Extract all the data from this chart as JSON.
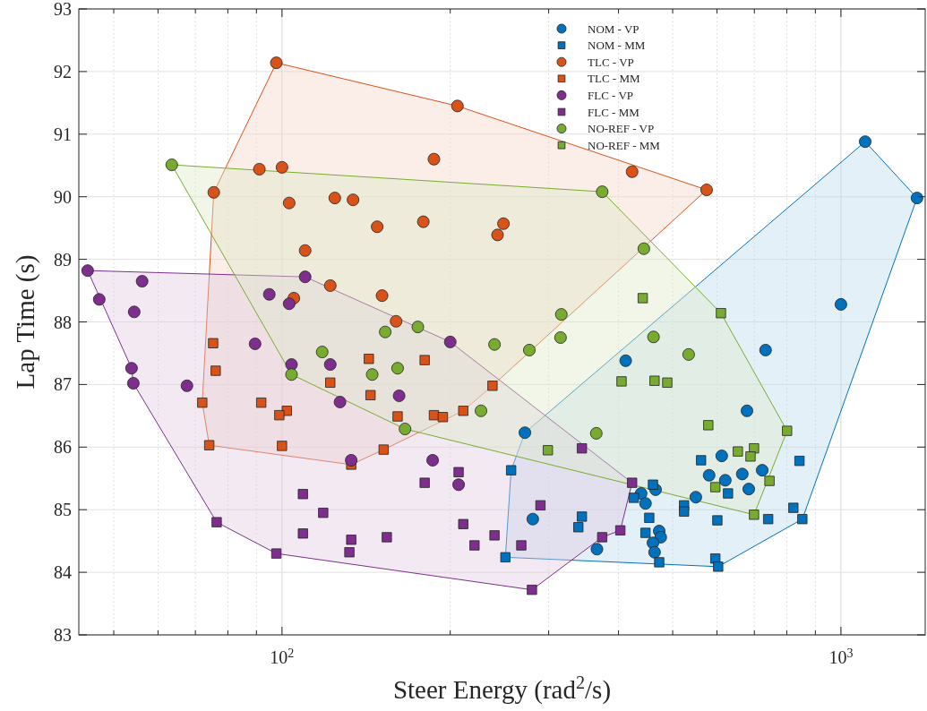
{
  "chart_data": {
    "type": "scatter",
    "xlabel": "Steer Energy (rad$^{2}$/s)",
    "ylabel": "Lap Time (s)",
    "log": "x",
    "grid": true,
    "legend": "top right",
    "xlim": [
      43.3,
      1415
    ],
    "ylim": [
      83,
      93
    ],
    "xticks": [
      {
        "value": 50,
        "label": null
      },
      {
        "value": 60,
        "label": null
      },
      {
        "value": 70,
        "label": null
      },
      {
        "value": 80,
        "label": null
      },
      {
        "value": 90,
        "label": null
      },
      {
        "value": 100,
        "label": "10$^{2}$"
      },
      {
        "value": 200,
        "label": null
      },
      {
        "value": 300,
        "label": null
      },
      {
        "value": 400,
        "label": null
      },
      {
        "value": 500,
        "label": null
      },
      {
        "value": 600,
        "label": null
      },
      {
        "value": 700,
        "label": null
      },
      {
        "value": 800,
        "label": null
      },
      {
        "value": 900,
        "label": null
      },
      {
        "value": 1000,
        "label": "10$^{3}$"
      }
    ],
    "yticks": [
      83,
      84,
      85,
      86,
      87,
      88,
      89,
      90,
      91,
      92,
      93
    ],
    "series": [
      {
        "type": "area",
        "color": "#0072bd",
        "x": [
          1105,
          1368,
          853,
          603,
          251,
          257,
          272
        ],
        "values": [
          90.88,
          89.98,
          84.85,
          84.09,
          84.24,
          85.63,
          86.23
        ]
      },
      {
        "type": "area",
        "color": "#d95319",
        "x": [
          97.7,
          206,
          575,
          238,
          211,
          152,
          133,
          74.1,
          72.0,
          75.5
        ],
        "values": [
          92.14,
          91.45,
          90.11,
          86.98,
          86.58,
          85.96,
          85.72,
          86.03,
          86.71,
          90.07
        ]
      },
      {
        "type": "area",
        "color": "#7e2f8e",
        "x": [
          44.9,
          110,
          200,
          423,
          403,
          374,
          280,
          97.7,
          76.4,
          54.2,
          53.8
        ],
        "values": [
          88.82,
          88.72,
          87.68,
          85.43,
          84.67,
          84.56,
          83.72,
          84.3,
          84.8,
          87.02,
          87.26
        ]
      },
      {
        "type": "area",
        "color": "#77ac30",
        "x": [
          63.5,
          374,
          610,
          801,
          699,
          166,
          104
        ],
        "values": [
          90.51,
          90.08,
          88.14,
          86.26,
          84.92,
          86.29,
          87.16
        ]
      },
      {
        "name": "NOM - VP",
        "marker": "circle",
        "color": "#0072bd",
        "x": [
          1105,
          1368,
          1000,
          733,
          679,
          612,
          581,
          621,
          666,
          723,
          684,
          550,
          466,
          439,
          447,
          473,
          476,
          461,
          464,
          412,
          272,
          281,
          366
        ],
        "values": [
          90.88,
          89.98,
          88.28,
          87.55,
          86.58,
          85.86,
          85.55,
          85.47,
          85.57,
          85.63,
          85.33,
          85.2,
          85.32,
          85.26,
          85.1,
          84.66,
          84.56,
          84.47,
          84.32,
          87.38,
          86.23,
          84.85,
          84.37
        ]
      },
      {
        "name": "NOM - MM",
        "marker": "square",
        "color": "#0072bd",
        "x": [
          257,
          251,
          344,
          339,
          426,
          461,
          454,
          447,
          473,
          524,
          524,
          562,
          628,
          601,
          596,
          603,
          741,
          822,
          843,
          853
        ],
        "values": [
          85.63,
          84.24,
          84.89,
          84.72,
          85.19,
          85.4,
          84.87,
          84.63,
          84.16,
          85.07,
          84.97,
          85.79,
          85.26,
          84.83,
          84.22,
          84.09,
          84.85,
          85.03,
          85.78,
          84.85
        ]
      },
      {
        "name": "TLC - VP",
        "marker": "circle",
        "color": "#d95319",
        "x": [
          97.7,
          206,
          423,
          575,
          75.5,
          91.1,
          100,
          103,
          124.3,
          134,
          148,
          179,
          187,
          249,
          243,
          110,
          122,
          105,
          151,
          160
        ],
        "values": [
          92.14,
          91.45,
          90.4,
          90.11,
          90.07,
          90.44,
          90.47,
          89.9,
          89.98,
          89.95,
          89.52,
          89.6,
          90.6,
          89.57,
          89.39,
          89.14,
          88.58,
          88.38,
          88.42,
          88.01
        ]
      },
      {
        "name": "TLC - MM",
        "marker": "square",
        "color": "#d95319",
        "x": [
          75.3,
          76.1,
          72.0,
          91.8,
          102,
          98.9,
          74.1,
          100,
          133,
          122,
          143,
          180,
          144,
          161,
          187,
          194,
          211,
          238,
          152
        ],
        "values": [
          87.66,
          87.22,
          86.71,
          86.71,
          86.58,
          86.51,
          86.03,
          86.02,
          85.72,
          87.03,
          87.41,
          87.39,
          86.83,
          86.49,
          86.51,
          86.48,
          86.58,
          86.98,
          85.96
        ]
      },
      {
        "name": "FLC - VP",
        "marker": "circle",
        "color": "#7e2f8e",
        "x": [
          44.9,
          56.2,
          47.1,
          54.4,
          89.5,
          53.8,
          54.2,
          67.6,
          110,
          94.9,
          103,
          104,
          122,
          127,
          133,
          200,
          162,
          186,
          207
        ],
        "values": [
          88.82,
          88.65,
          88.36,
          88.16,
          87.65,
          87.26,
          87.02,
          86.98,
          88.72,
          88.44,
          88.29,
          87.32,
          87.32,
          86.72,
          85.79,
          87.68,
          86.82,
          85.79,
          85.4
        ]
      },
      {
        "name": "FLC - MM",
        "marker": "square",
        "color": "#7e2f8e",
        "x": [
          76.4,
          97.7,
          109,
          118.5,
          109,
          133,
          132,
          154,
          180,
          207,
          211,
          221,
          240,
          268,
          280,
          290,
          344,
          423,
          403,
          374
        ],
        "values": [
          84.8,
          84.3,
          85.25,
          84.95,
          84.62,
          84.52,
          84.32,
          84.56,
          85.43,
          85.6,
          84.77,
          84.43,
          84.59,
          84.43,
          83.72,
          85.07,
          85.98,
          85.43,
          84.67,
          84.56
        ]
      },
      {
        "name": "NO-REF - VP",
        "marker": "circle",
        "color": "#77ac30",
        "x": [
          63.5,
          374,
          444,
          462,
          534,
          118,
          104,
          153,
          175,
          240,
          277,
          316,
          315,
          145,
          161,
          227,
          166,
          365
        ],
        "values": [
          90.51,
          90.08,
          89.17,
          87.76,
          87.48,
          87.52,
          87.16,
          87.84,
          87.92,
          87.64,
          87.55,
          88.12,
          87.75,
          87.16,
          87.26,
          86.58,
          86.29,
          86.22
        ]
      },
      {
        "name": "NO-REF - MM",
        "marker": "square",
        "color": "#77ac30",
        "x": [
          442,
          405,
          299,
          610,
          464,
          489,
          579,
          801,
          654,
          699,
          689,
          745,
          596,
          699
        ],
        "values": [
          88.38,
          87.05,
          85.95,
          88.14,
          87.06,
          87.03,
          86.35,
          86.26,
          85.93,
          85.98,
          85.85,
          85.46,
          85.36,
          84.92
        ]
      }
    ]
  }
}
